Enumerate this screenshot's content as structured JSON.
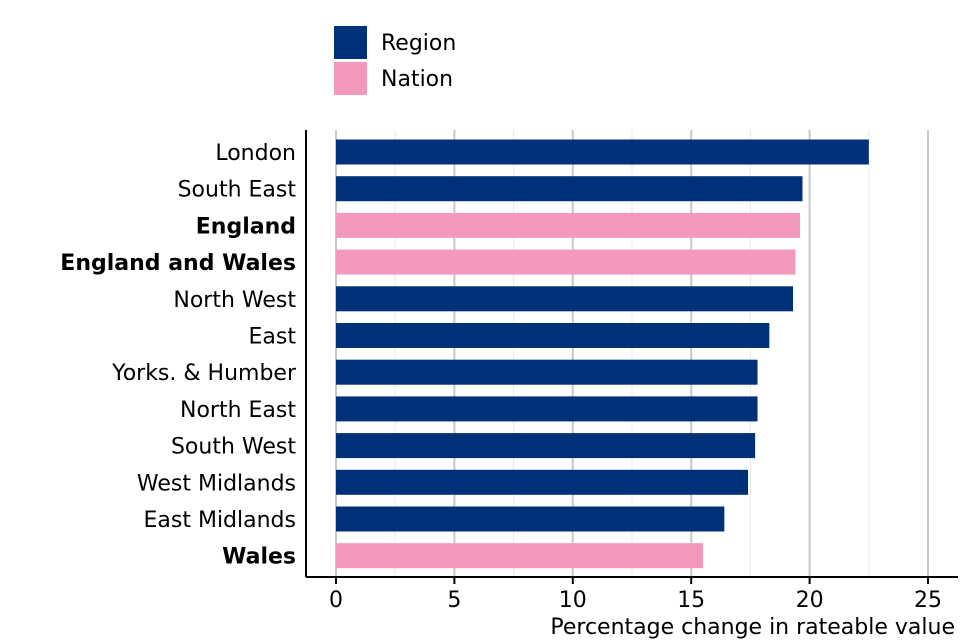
{
  "chart_data": {
    "type": "bar",
    "orientation": "horizontal",
    "xlabel": "Percentage change in rateable value",
    "ylabel": "",
    "xlim": [
      -1.2,
      26.2
    ],
    "xticks": [
      0,
      5,
      10,
      15,
      20,
      25
    ],
    "grid": true,
    "legend_position": "top-left",
    "legend": [
      {
        "name": "Region",
        "color": "#003078"
      },
      {
        "name": "Nation",
        "color": "#f499be"
      }
    ],
    "categories": [
      "London",
      "South East",
      "England",
      "England and Wales",
      "North West",
      "East",
      "Yorks. & Humber",
      "North East",
      "South West",
      "West Midlands",
      "East Midlands",
      "Wales"
    ],
    "values": [
      22.5,
      19.7,
      19.6,
      19.4,
      19.3,
      18.3,
      17.8,
      17.8,
      17.7,
      17.4,
      16.4,
      15.5
    ],
    "groups": [
      "Region",
      "Region",
      "Nation",
      "Nation",
      "Region",
      "Region",
      "Region",
      "Region",
      "Region",
      "Region",
      "Region",
      "Nation"
    ]
  }
}
